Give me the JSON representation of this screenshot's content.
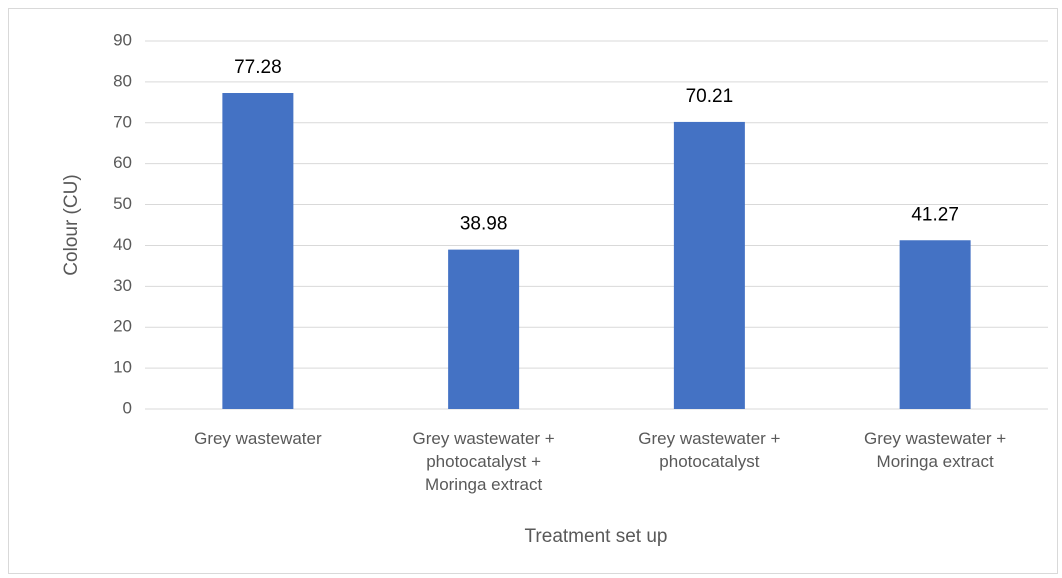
{
  "chart_data": {
    "type": "bar",
    "categories": [
      "Grey wastewater",
      "Grey wastewater + photocatalyst + Moringa extract",
      "Grey wastewater + photocatalyst",
      "Grey wastewater + Moringa extract"
    ],
    "values": [
      77.28,
      38.98,
      70.21,
      41.27
    ],
    "color": "#4472c4",
    "ylabel": "Colour (CU)",
    "xlabel": "Treatment set up",
    "ylim": [
      0,
      90
    ],
    "yticks": [
      0,
      10,
      20,
      30,
      40,
      50,
      60,
      70,
      80,
      90
    ],
    "grid": true
  }
}
